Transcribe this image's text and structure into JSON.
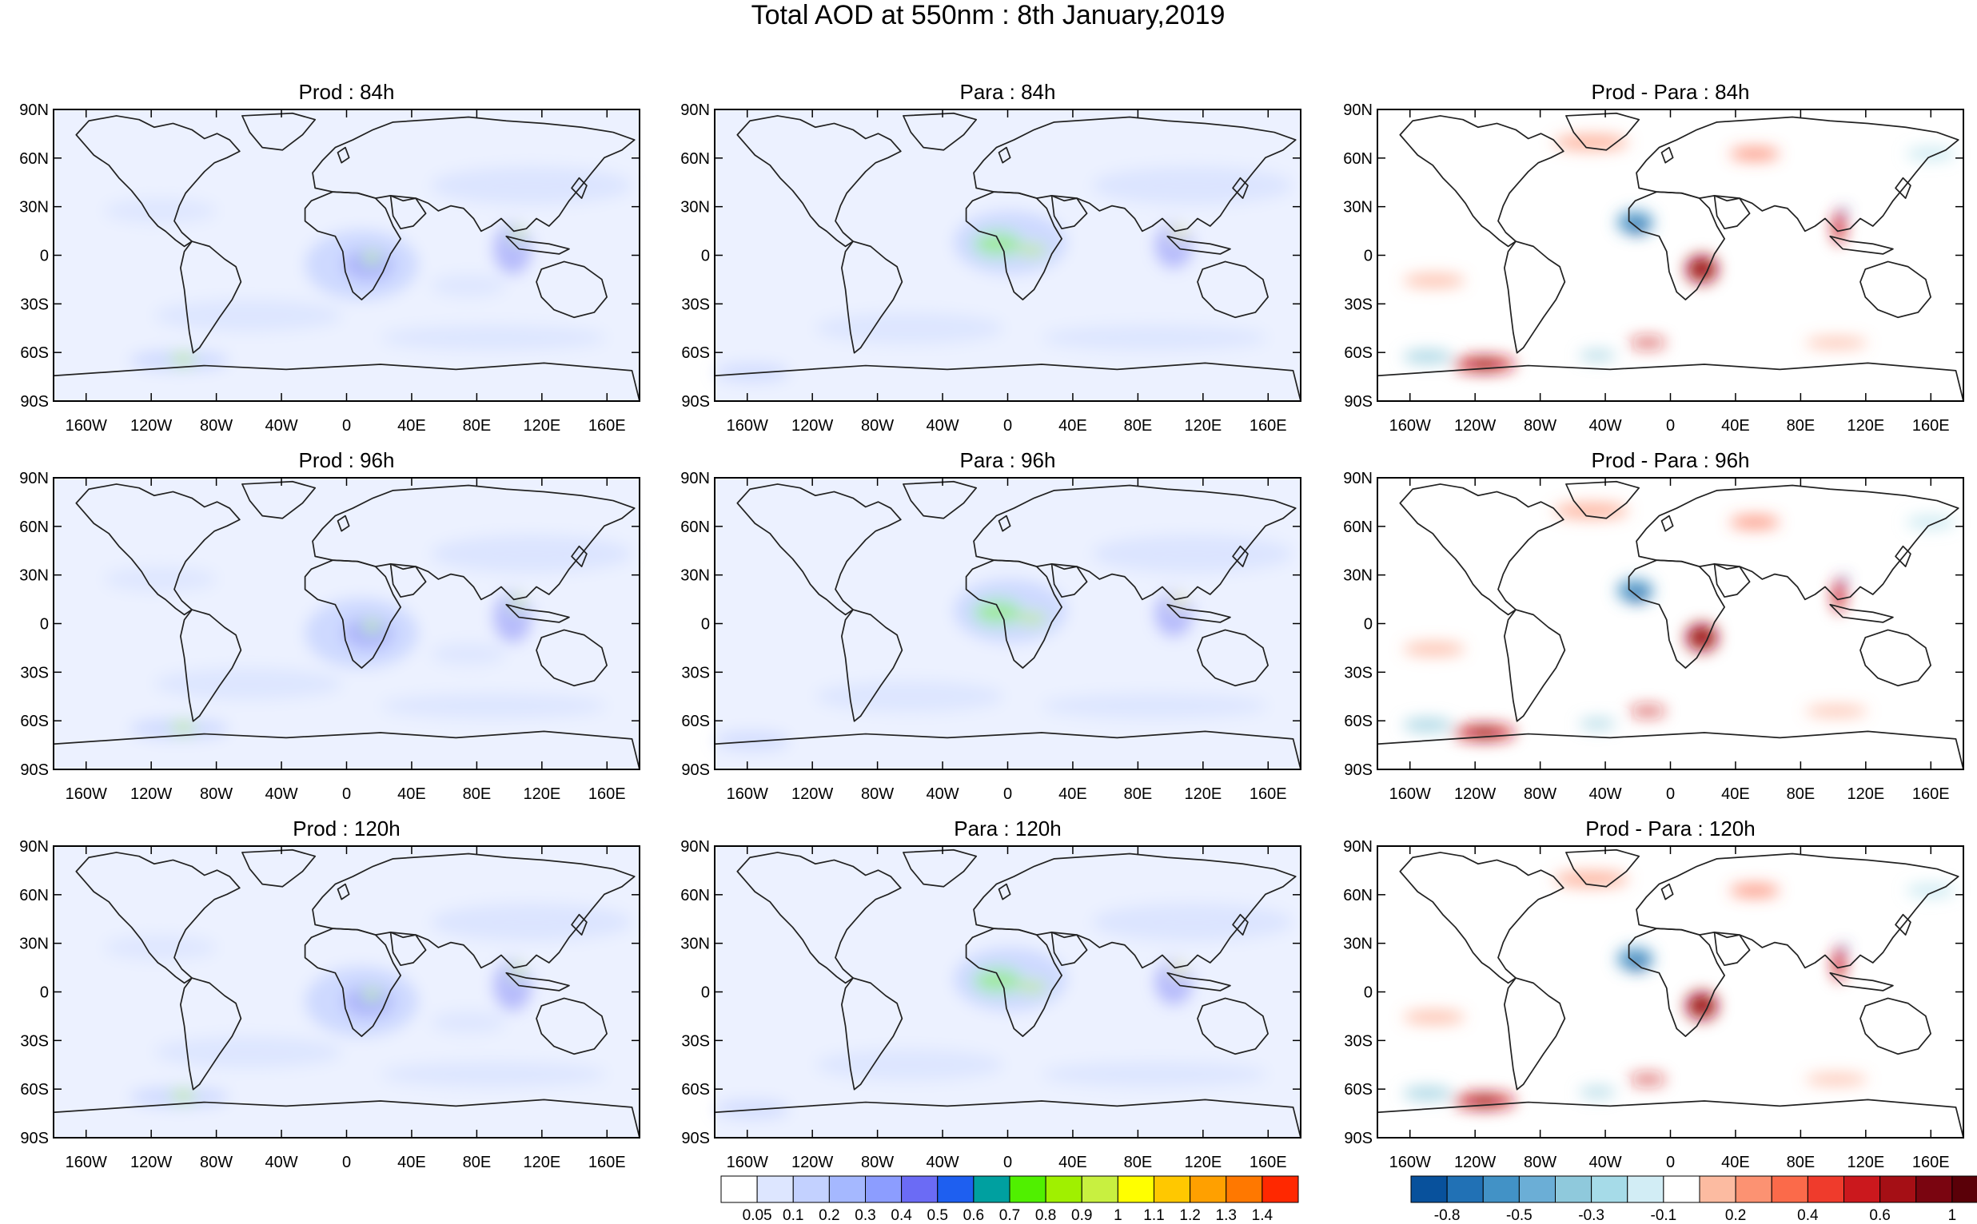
{
  "figure_title": "Total AOD at 550nm : 8th January,2019",
  "panels": [
    {
      "id": "p84",
      "title": "Prod : 84h",
      "kind": "aod",
      "col": 0,
      "row": 0
    },
    {
      "id": "a84",
      "title": "Para : 84h",
      "kind": "aod",
      "col": 1,
      "row": 0
    },
    {
      "id": "d84",
      "title": "Prod - Para : 84h",
      "kind": "diff",
      "col": 2,
      "row": 0
    },
    {
      "id": "p96",
      "title": "Prod : 96h",
      "kind": "aod",
      "col": 0,
      "row": 1
    },
    {
      "id": "a96",
      "title": "Para : 96h",
      "kind": "aod",
      "col": 1,
      "row": 1
    },
    {
      "id": "d96",
      "title": "Prod - Para : 96h",
      "kind": "diff",
      "col": 2,
      "row": 1
    },
    {
      "id": "p120",
      "title": "Prod : 120h",
      "kind": "aod",
      "col": 0,
      "row": 2
    },
    {
      "id": "a120",
      "title": "Para : 120h",
      "kind": "aod",
      "col": 1,
      "row": 2
    },
    {
      "id": "d120",
      "title": "Prod - Para : 120h",
      "kind": "diff",
      "col": 2,
      "row": 2
    }
  ],
  "lat_labels": [
    "90N",
    "60N",
    "30N",
    "0",
    "30S",
    "60S",
    "90S"
  ],
  "lon_labels": [
    "160W",
    "120W",
    "80W",
    "40W",
    "0",
    "40E",
    "80E",
    "120E",
    "160E"
  ],
  "aod_colorbar": {
    "colors": [
      "#ffffff",
      "#dde6ff",
      "#c3d1ff",
      "#a5b8ff",
      "#8c9dff",
      "#6b6bf5",
      "#1e5ff0",
      "#00a0a0",
      "#50f000",
      "#a0f000",
      "#c8f040",
      "#ffff00",
      "#ffc800",
      "#ffa000",
      "#ff7800",
      "#ff2800"
    ],
    "labels": [
      "0.05",
      "0.1",
      "0.2",
      "0.3",
      "0.4",
      "0.5",
      "0.6",
      "0.7",
      "0.8",
      "0.9",
      "1",
      "1.1",
      "1.2",
      "1.3",
      "1.4"
    ]
  },
  "diff_colorbar": {
    "colors": [
      "#08519c",
      "#2171b5",
      "#4292c6",
      "#6baed6",
      "#8fc9dc",
      "#a6dbe8",
      "#d2edf5",
      "#ffffff",
      "#fcbba1",
      "#fc9272",
      "#fb6a4a",
      "#ef3b2c",
      "#cb181d",
      "#a50f15",
      "#7a0510",
      "#5a0008"
    ],
    "labels": [
      "-0.8",
      "-0.5",
      "-0.3",
      "-0.1",
      "0.2",
      "0.4",
      "0.6",
      "1"
    ]
  }
}
